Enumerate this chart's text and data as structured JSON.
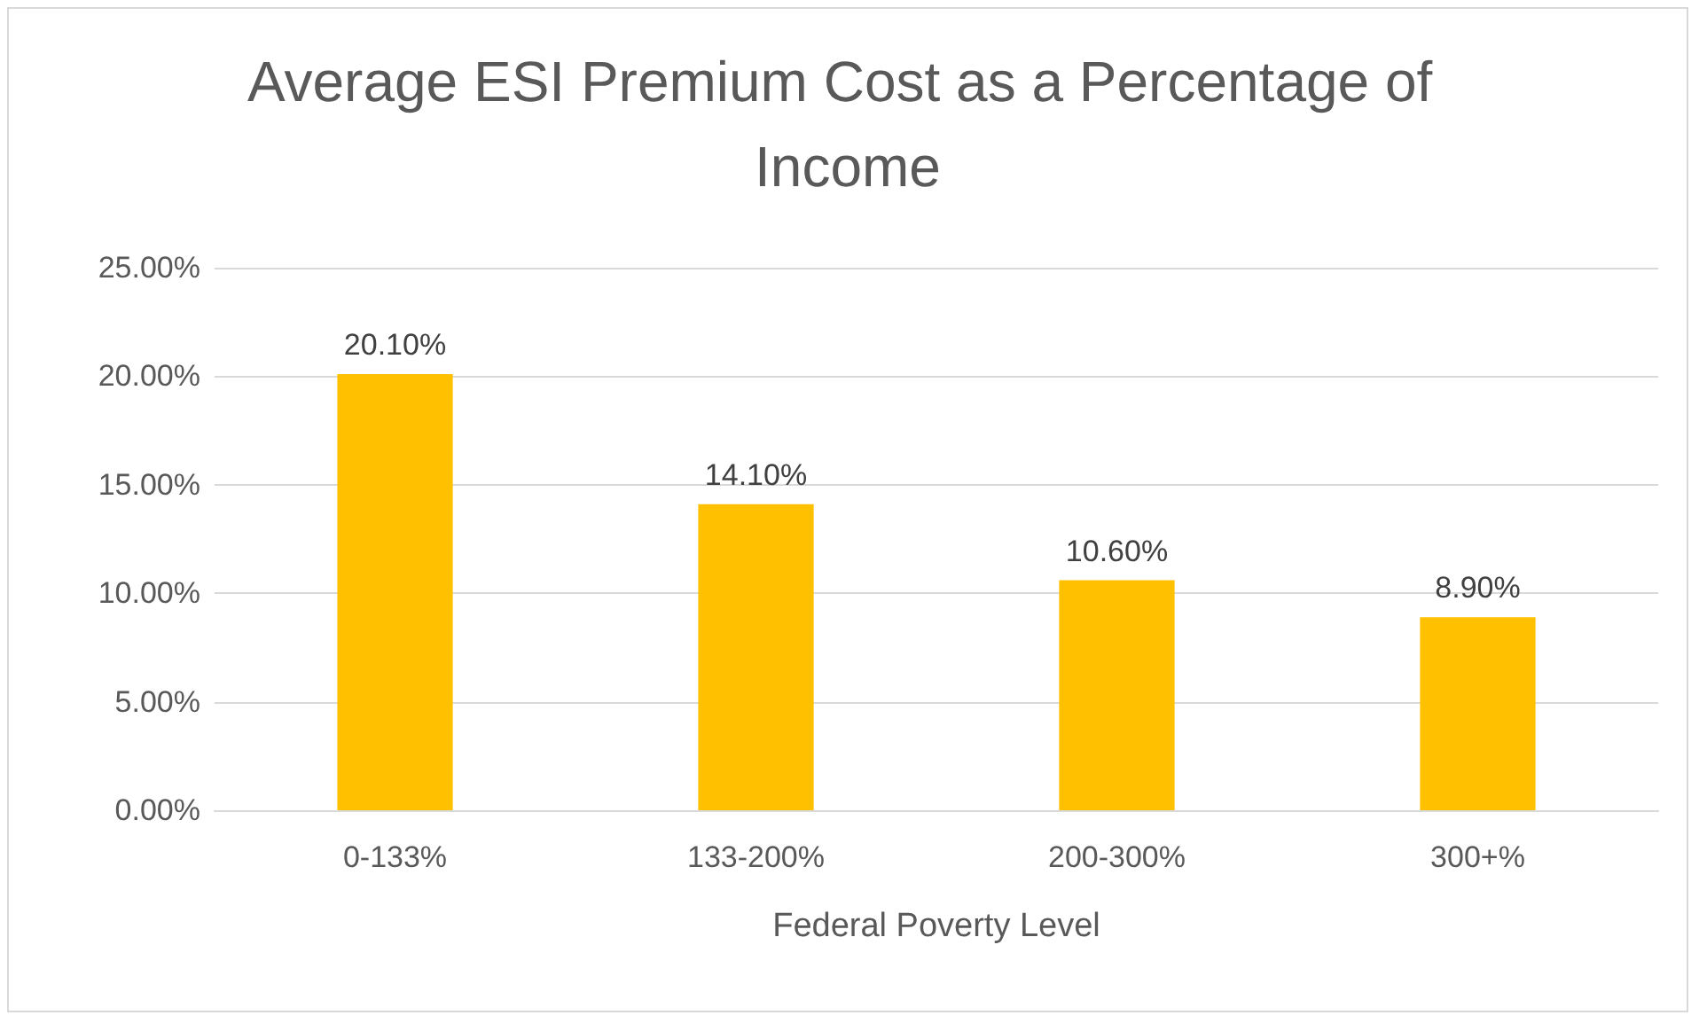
{
  "chart_data": {
    "type": "bar",
    "title": "Average ESI Premium Cost as a Percentage of Income",
    "xlabel": "Federal Poverty Level",
    "categories": [
      "0-133%",
      "133-200%",
      "200-300%",
      "300+%"
    ],
    "values": [
      20.1,
      14.1,
      10.6,
      8.9
    ],
    "value_labels": [
      "20.10%",
      "14.10%",
      "10.60%",
      "8.90%"
    ],
    "color": "#ffc000",
    "ylim": [
      0,
      25
    ],
    "yticks": [
      {
        "value": 0,
        "label": "0.00%"
      },
      {
        "value": 5,
        "label": "5.00%"
      },
      {
        "value": 10,
        "label": "10.00%"
      },
      {
        "value": 15,
        "label": "15.00%"
      },
      {
        "value": 20,
        "label": "20.00%"
      },
      {
        "value": 25,
        "label": "25.00%"
      }
    ],
    "grid": "y"
  }
}
